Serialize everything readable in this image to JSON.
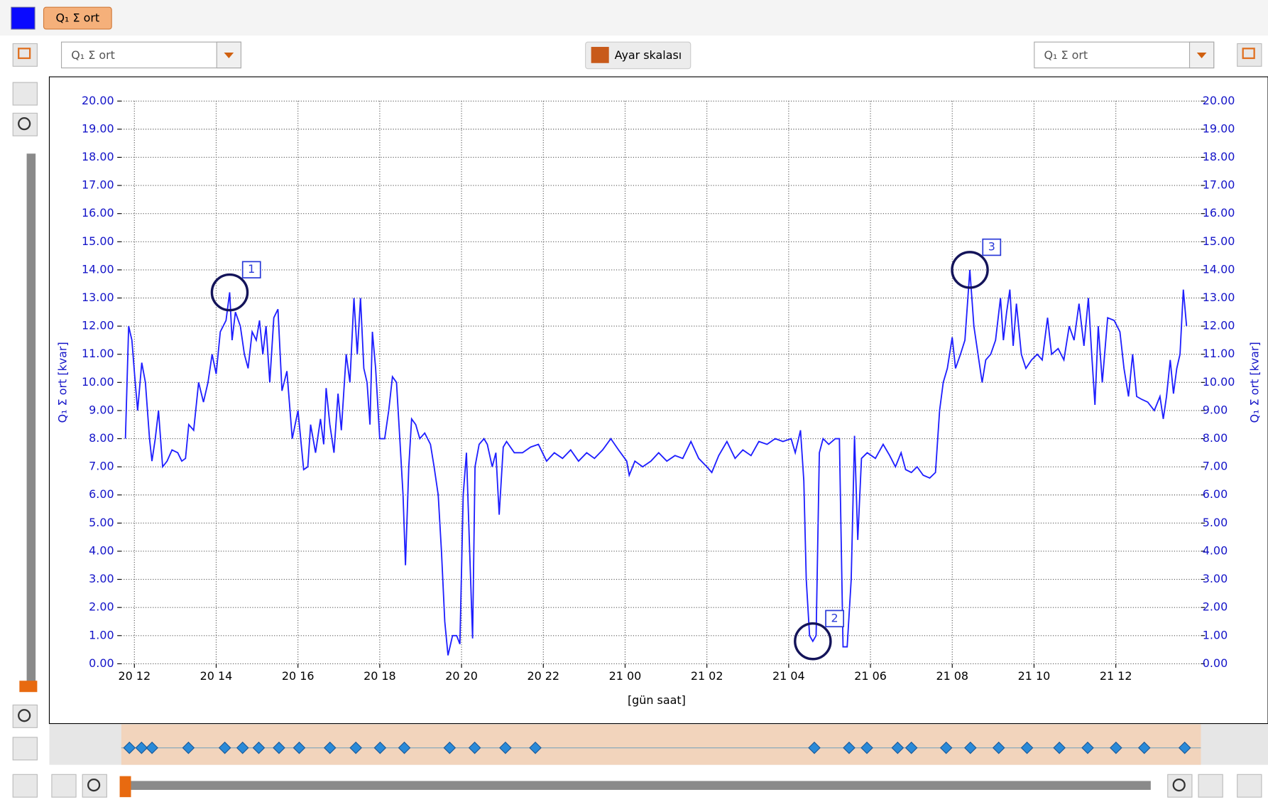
{
  "ui": {
    "left_select": "Q₁ Σ ort",
    "button": "Ayar skalası",
    "right_select": "Q₁ Σ ort"
  },
  "chart_data": {
    "type": "line",
    "xlabel": "[gün saat]",
    "ylabel": "Q₁ Σ ort [kvar]",
    "y2label": "Q₁ Σ ort [kvar]",
    "x": [
      11.78,
      11.86,
      11.94,
      12.02,
      12.08,
      12.18,
      12.27,
      12.37,
      12.43,
      12.51,
      12.59,
      12.69,
      12.8,
      12.92,
      13.06,
      13.16,
      13.25,
      13.33,
      13.45,
      13.57,
      13.69,
      13.8,
      13.9,
      14.0,
      14.1,
      14.24,
      14.33,
      14.39,
      14.47,
      14.59,
      14.69,
      14.78,
      14.88,
      14.98,
      15.06,
      15.14,
      15.22,
      15.31,
      15.41,
      15.51,
      15.61,
      15.73,
      15.86,
      16.0,
      16.14,
      16.24,
      16.31,
      16.43,
      16.55,
      16.63,
      16.69,
      16.78,
      16.88,
      16.98,
      17.06,
      17.18,
      17.27,
      17.37,
      17.45,
      17.53,
      17.61,
      17.69,
      17.76,
      17.82,
      17.9,
      18.0,
      18.12,
      18.22,
      18.31,
      18.41,
      18.49,
      18.57,
      18.63,
      18.71,
      18.78,
      18.88,
      18.98,
      19.1,
      19.24,
      19.33,
      19.43,
      19.51,
      19.59,
      19.67,
      19.78,
      19.88,
      19.96,
      20.04,
      20.12,
      20.2,
      20.27,
      20.33,
      20.43,
      20.55,
      20.63,
      20.75,
      20.84,
      20.92,
      21.02,
      21.1,
      21.29,
      21.49,
      21.69,
      21.88,
      22.08,
      22.27,
      22.47,
      22.67,
      22.86,
      23.06,
      23.25,
      23.45,
      23.65,
      23.84,
      24.04,
      24.1,
      24.24,
      24.43,
      24.63,
      24.82,
      25.02,
      25.22,
      25.41,
      25.61,
      25.8,
      26.0,
      26.12,
      26.29,
      26.49,
      26.69,
      26.88,
      27.08,
      27.27,
      27.47,
      27.67,
      27.86,
      28.06,
      28.16,
      28.29,
      28.37,
      28.43,
      28.51,
      28.59,
      28.67,
      28.75,
      28.84,
      28.98,
      29.14,
      29.24,
      29.33,
      29.43,
      29.53,
      29.61,
      29.69,
      29.78,
      29.92,
      30.12,
      30.31,
      30.47,
      30.61,
      30.75,
      30.86,
      31.0,
      31.14,
      31.29,
      31.45,
      31.59,
      31.69,
      31.78,
      31.88,
      32.0,
      32.08,
      32.2,
      32.31,
      32.43,
      32.53,
      32.63,
      32.73,
      32.82,
      32.94,
      33.06,
      33.18,
      33.25,
      33.33,
      33.41,
      33.49,
      33.57,
      33.69,
      33.8,
      33.94,
      34.08,
      34.2,
      34.33,
      34.43,
      34.59,
      34.73,
      34.86,
      34.98,
      35.1,
      35.22,
      35.33,
      35.41,
      35.49,
      35.57,
      35.67,
      35.8,
      35.96,
      36.1,
      36.2,
      36.31,
      36.41,
      36.51,
      36.63,
      36.78,
      36.94,
      37.08,
      37.16,
      37.24,
      37.33,
      37.41,
      37.49,
      37.57,
      37.65,
      37.73
    ],
    "series": [
      {
        "name": "Q₁ Σ ort",
        "color": "#1e1eff",
        "values": [
          8.0,
          12.0,
          11.5,
          10.0,
          9.0,
          10.7,
          10.0,
          8.0,
          7.2,
          8.0,
          9.0,
          7.0,
          7.2,
          7.6,
          7.5,
          7.2,
          7.3,
          8.5,
          8.3,
          10.0,
          9.3,
          10.0,
          11.0,
          10.3,
          11.8,
          12.2,
          13.2,
          11.5,
          12.5,
          12.0,
          11.0,
          10.5,
          11.8,
          11.5,
          12.2,
          11.0,
          12.0,
          10.0,
          12.3,
          12.6,
          9.7,
          10.4,
          8.0,
          9.0,
          6.9,
          7.0,
          8.5,
          7.5,
          8.7,
          7.8,
          9.8,
          8.5,
          7.5,
          9.6,
          8.3,
          11.0,
          10.0,
          13.0,
          11.0,
          13.0,
          10.5,
          10.0,
          8.5,
          11.8,
          10.5,
          8.0,
          8.0,
          9.0,
          10.2,
          10.0,
          8.0,
          6.0,
          3.5,
          7.0,
          8.7,
          8.5,
          8.0,
          8.2,
          7.8,
          7.0,
          6.0,
          4.0,
          1.5,
          0.3,
          1.0,
          1.0,
          0.7,
          6.0,
          7.5,
          4.0,
          0.9,
          7.0,
          7.8,
          8.0,
          7.8,
          7.0,
          7.5,
          5.3,
          7.7,
          7.9,
          7.5,
          7.5,
          7.7,
          7.8,
          7.2,
          7.5,
          7.3,
          7.6,
          7.2,
          7.5,
          7.3,
          7.6,
          8.0,
          7.6,
          7.2,
          6.7,
          7.2,
          7.0,
          7.2,
          7.5,
          7.2,
          7.4,
          7.3,
          7.9,
          7.3,
          7.0,
          6.8,
          7.4,
          7.9,
          7.3,
          7.6,
          7.4,
          7.9,
          7.8,
          8.0,
          7.9,
          8.0,
          7.5,
          8.3,
          6.5,
          3.0,
          1.0,
          0.8,
          1.0,
          7.5,
          8.0,
          7.8,
          8.0,
          8.0,
          0.6,
          0.6,
          3.0,
          8.1,
          4.4,
          7.3,
          7.5,
          7.3,
          7.8,
          7.4,
          7.0,
          7.5,
          6.9,
          6.8,
          7.0,
          6.7,
          6.6,
          6.8,
          9.0,
          10.0,
          10.5,
          11.6,
          10.5,
          11.0,
          11.5,
          14.0,
          12.0,
          11.0,
          10.0,
          10.8,
          11.0,
          11.5,
          13.0,
          11.5,
          12.5,
          13.3,
          11.3,
          12.8,
          11.0,
          10.5,
          10.8,
          11.0,
          10.8,
          12.3,
          11.0,
          11.2,
          10.8,
          12.0,
          11.5,
          12.8,
          11.3,
          13.0,
          11.0,
          9.2,
          12.0,
          10.0,
          12.3,
          12.2,
          11.8,
          10.5,
          9.5,
          11.0,
          9.5,
          9.4,
          9.3,
          9.0,
          9.5,
          8.7,
          9.5,
          10.8,
          9.6,
          10.5,
          11.0,
          13.3,
          12.0
        ]
      }
    ],
    "xlim": [
      11.68,
      38.08
    ],
    "xticks": [
      {
        "value": 12,
        "label": "20 12"
      },
      {
        "value": 14,
        "label": "20 14"
      },
      {
        "value": 16,
        "label": "20 16"
      },
      {
        "value": 18,
        "label": "20 18"
      },
      {
        "value": 20,
        "label": "20 20"
      },
      {
        "value": 22,
        "label": "20 22"
      },
      {
        "value": 24,
        "label": "21 00"
      },
      {
        "value": 26,
        "label": "21 02"
      },
      {
        "value": 28,
        "label": "21 04"
      },
      {
        "value": 30,
        "label": "21 06"
      },
      {
        "value": 32,
        "label": "21 08"
      },
      {
        "value": 34,
        "label": "21 10"
      },
      {
        "value": 36,
        "label": "21 12"
      }
    ],
    "ylim": [
      0,
      20
    ],
    "yticks": [
      {
        "value": 0,
        "label": "0.00"
      },
      {
        "value": 1,
        "label": "1.00"
      },
      {
        "value": 2,
        "label": "2.00"
      },
      {
        "value": 3,
        "label": "3.00"
      },
      {
        "value": 4,
        "label": "4.00"
      },
      {
        "value": 5,
        "label": "5.00"
      },
      {
        "value": 6,
        "label": "6.00"
      },
      {
        "value": 7,
        "label": "7.00"
      },
      {
        "value": 8,
        "label": "8.00"
      },
      {
        "value": 9,
        "label": "9.00"
      },
      {
        "value": 10,
        "label": "10.00"
      },
      {
        "value": 11,
        "label": "11.00"
      },
      {
        "value": 12,
        "label": "12.00"
      },
      {
        "value": 13,
        "label": "13.00"
      },
      {
        "value": 14,
        "label": "14.00"
      },
      {
        "value": 15,
        "label": "15.00"
      },
      {
        "value": 16,
        "label": "16.00"
      },
      {
        "value": 17,
        "label": "17.00"
      },
      {
        "value": 18,
        "label": "18.00"
      },
      {
        "value": 19,
        "label": "19.00"
      },
      {
        "value": 20,
        "label": "20.00"
      }
    ],
    "grid": true,
    "annotations": [
      {
        "label": "1",
        "x": 14.33,
        "y": 13.2
      },
      {
        "label": "2",
        "x": 28.59,
        "y": 0.8
      },
      {
        "label": "3",
        "x": 32.43,
        "y": 14.0
      }
    ]
  }
}
